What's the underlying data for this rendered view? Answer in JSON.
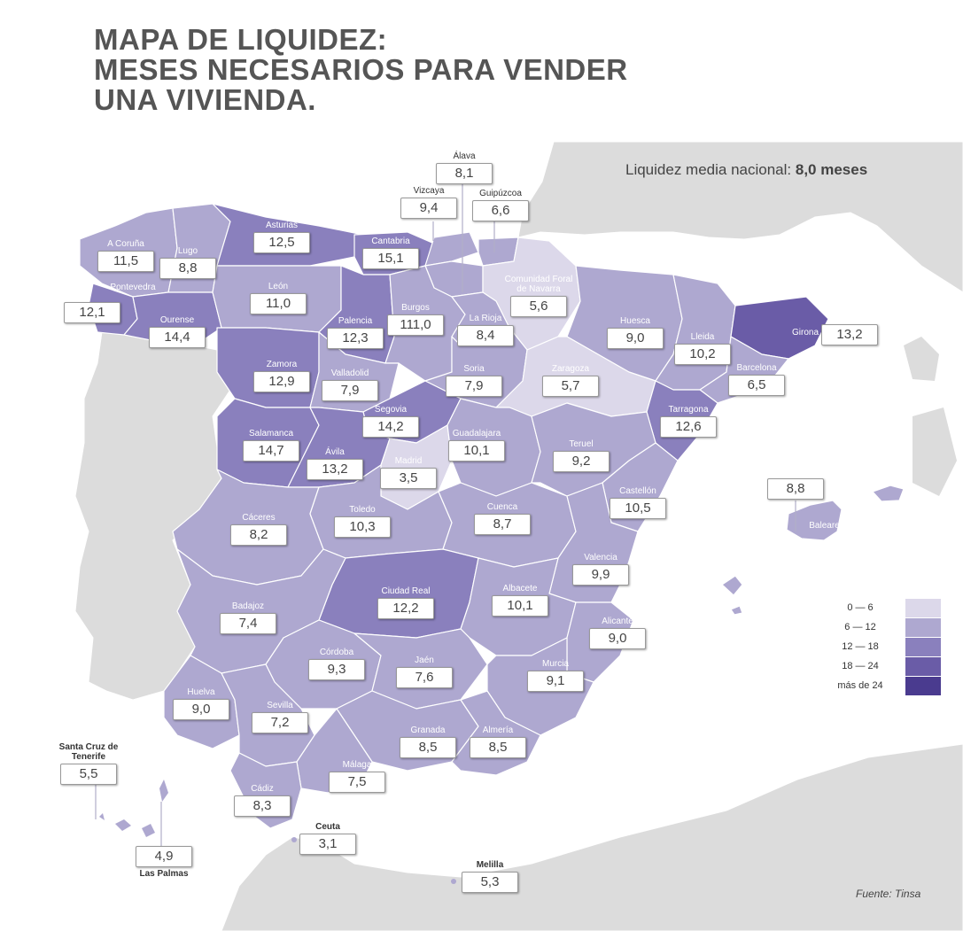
{
  "title": {
    "line1": "MAPA DE LIQUIDEZ:",
    "line2": "MESES NECESARIOS PARA VENDER",
    "line3": "UNA VIVIENDA."
  },
  "national": {
    "label": "Liquidez media nacional:",
    "value": "8,0 meses"
  },
  "colors": {
    "land": "#dcdcdc",
    "sea": "#ffffff",
    "border": "#ffffff",
    "scale": [
      "#dcd8ea",
      "#aea8d0",
      "#8a80bd",
      "#6a5ca7",
      "#4a3b8f"
    ]
  },
  "legend": {
    "ranges": [
      {
        "label": "0   —  6",
        "color": "#dcd8ea"
      },
      {
        "label": "6   —  12",
        "color": "#aea8d0"
      },
      {
        "label": "12  —  18",
        "color": "#8a80bd"
      },
      {
        "label": "18  —  24",
        "color": "#6a5ca7"
      },
      {
        "label": "más de 24",
        "color": "#4a3b8f"
      }
    ]
  },
  "provinces": {
    "a_coruna": {
      "name": "A Coruña",
      "value": "11,5"
    },
    "lugo": {
      "name": "Lugo",
      "value": "8,8"
    },
    "asturias": {
      "name": "Asturias",
      "value": "12,5"
    },
    "cantabria": {
      "name": "Cantabria",
      "value": "15,1"
    },
    "vizcaya": {
      "name": "Vizcaya",
      "value": "9,4"
    },
    "alava": {
      "name": "Álava",
      "value": "8,1"
    },
    "guipuzcoa": {
      "name": "Guipúzcoa",
      "value": "6,6"
    },
    "navarra": {
      "name": "Comunidad Foral de Navarra",
      "value": "5,6"
    },
    "pontevedra": {
      "name": "Pontevedra",
      "value": "12,1"
    },
    "ourense": {
      "name": "Ourense",
      "value": "14,4"
    },
    "leon": {
      "name": "León",
      "value": "11,0"
    },
    "palencia": {
      "name": "Palencia",
      "value": "12,3"
    },
    "burgos": {
      "name": "Burgos",
      "value": "111,0"
    },
    "la_rioja": {
      "name": "La Rioja",
      "value": "8,4"
    },
    "huesca": {
      "name": "Huesca",
      "value": "9,0"
    },
    "lleida": {
      "name": "Lleida",
      "value": "10,2"
    },
    "girona": {
      "name": "Girona",
      "value": "13,2"
    },
    "barcelona": {
      "name": "Barcelona",
      "value": "6,5"
    },
    "zamora": {
      "name": "Zamora",
      "value": "12,9"
    },
    "valladolid": {
      "name": "Valladolid",
      "value": "7,9"
    },
    "soria": {
      "name": "Soria",
      "value": "7,9"
    },
    "zaragoza": {
      "name": "Zaragoza",
      "value": "5,7"
    },
    "tarragona": {
      "name": "Tarragona",
      "value": "12,6"
    },
    "segovia": {
      "name": "Segovia",
      "value": "14,2"
    },
    "salamanca": {
      "name": "Salamanca",
      "value": "14,7"
    },
    "avila": {
      "name": "Ávila",
      "value": "13,2"
    },
    "madrid": {
      "name": "Madrid",
      "value": "3,5"
    },
    "guadalajara": {
      "name": "Guadalajara",
      "value": "10,1"
    },
    "teruel": {
      "name": "Teruel",
      "value": "9,2"
    },
    "castellon": {
      "name": "Castellón",
      "value": "10,5"
    },
    "baleares": {
      "name": "Baleares",
      "value": "8,8"
    },
    "caceres": {
      "name": "Cáceres",
      "value": "8,2"
    },
    "toledo": {
      "name": "Toledo",
      "value": "10,3"
    },
    "cuenca": {
      "name": "Cuenca",
      "value": "8,7"
    },
    "valencia": {
      "name": "Valencia",
      "value": "9,9"
    },
    "ciudad_real": {
      "name": "Ciudad Real",
      "value": "12,2"
    },
    "albacete": {
      "name": "Albacete",
      "value": "10,1"
    },
    "badajoz": {
      "name": "Badajoz",
      "value": "7,4"
    },
    "alicante": {
      "name": "Alicante",
      "value": "9,0"
    },
    "cordoba": {
      "name": "Córdoba",
      "value": "9,3"
    },
    "jaen": {
      "name": "Jaén",
      "value": "7,6"
    },
    "murcia": {
      "name": "Murcia",
      "value": "9,1"
    },
    "huelva": {
      "name": "Huelva",
      "value": "9,0"
    },
    "sevilla": {
      "name": "Sevilla",
      "value": "7,2"
    },
    "granada": {
      "name": "Granada",
      "value": "8,5"
    },
    "almeria": {
      "name": "Almería",
      "value": "8,5"
    },
    "malaga": {
      "name": "Málaga",
      "value": "7,5"
    },
    "cadiz": {
      "name": "Cádiz",
      "value": "8,3"
    },
    "santa_cruz": {
      "name": "Santa Cruz de Tenerife",
      "value": "5,5"
    },
    "las_palmas": {
      "name": "Las Palmas",
      "value": "4,9"
    },
    "ceuta": {
      "name": "Ceuta",
      "value": "3,1"
    },
    "melilla": {
      "name": "Melilla",
      "value": "5,3"
    }
  },
  "source": "Fuente: Tinsa"
}
